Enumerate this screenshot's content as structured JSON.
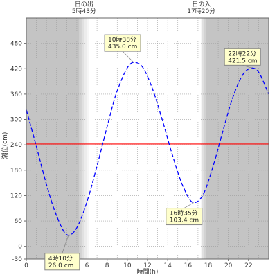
{
  "chart_data": {
    "type": "line",
    "title": "",
    "xlabel": "時間(h)",
    "ylabel": "潮位(cm)",
    "xlim": [
      0,
      24
    ],
    "ylim": [
      -30,
      540
    ],
    "x_ticks": [
      0,
      2,
      4,
      6,
      8,
      10,
      12,
      14,
      16,
      18,
      20,
      22
    ],
    "y_ticks": [
      -30,
      0,
      60,
      120,
      180,
      240,
      300,
      360,
      420,
      480
    ],
    "grid": true,
    "reference_line": {
      "value": 242,
      "color": "#ff0000"
    },
    "sun": [
      {
        "label": "日の出",
        "time": "5時43分",
        "hour": 5.72
      },
      {
        "label": "日の入",
        "time": "17時20分",
        "hour": 17.33
      }
    ],
    "series": [
      {
        "color": "#0000ff",
        "style": "dashed",
        "x": [
          0,
          1,
          2,
          3,
          4.17,
          5,
          6,
          7,
          8,
          9,
          10.63,
          11.5,
          12.5,
          13.5,
          14.5,
          15.5,
          16.58,
          17.5,
          18.5,
          19.5,
          20.5,
          21.5,
          22.37,
          23,
          24
        ],
        "y": [
          323,
          236,
          146,
          72,
          26,
          44,
          105,
          190,
          283,
          368,
          435,
          424,
          372,
          296,
          213,
          143,
          103.4,
          122,
          190,
          276,
          356,
          408,
          421.5,
          412,
          360
        ]
      }
    ],
    "annotations": [
      {
        "time": "4時10分",
        "value": "26.0 cm",
        "x": 4.17,
        "y": 26.0
      },
      {
        "time": "10時38分",
        "value": "435.0 cm",
        "x": 10.63,
        "y": 435.0
      },
      {
        "time": "16時35分",
        "value": "103.4 cm",
        "x": 16.58,
        "y": 103.4
      },
      {
        "time": "22時22分",
        "value": "421.5 cm",
        "x": 22.37,
        "y": 421.5
      }
    ]
  }
}
